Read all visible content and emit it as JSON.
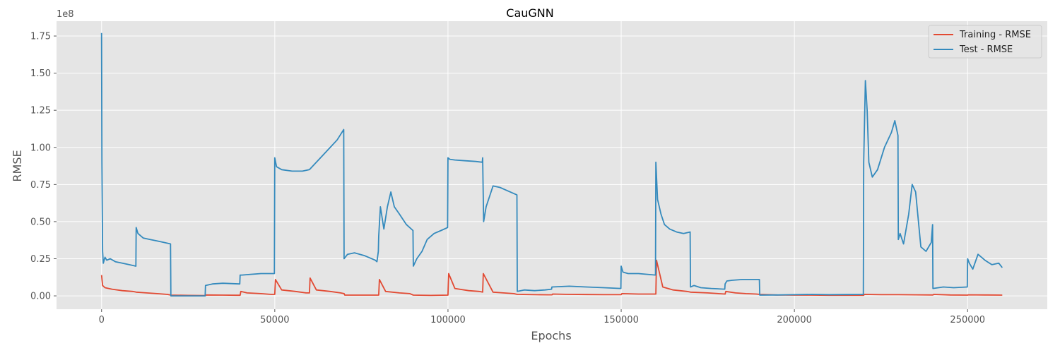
{
  "chart_data": {
    "type": "line",
    "title": "CauGNN",
    "xlabel": "Epochs",
    "ylabel": "RMSE",
    "scale_label": "1e8",
    "xlim": [
      -13000,
      273000
    ],
    "ylim": [
      -0.09,
      1.85
    ],
    "x_ticks": [
      0,
      50000,
      100000,
      150000,
      200000,
      250000
    ],
    "x_tick_labels": [
      "0",
      "50000",
      "100000",
      "150000",
      "200000",
      "250000"
    ],
    "y_ticks": [
      0.0,
      0.25,
      0.5,
      0.75,
      1.0,
      1.25,
      1.5,
      1.75
    ],
    "y_tick_labels": [
      "0.00",
      "0.25",
      "0.50",
      "0.75",
      "1.00",
      "1.25",
      "1.50",
      "1.75"
    ],
    "grid": true,
    "legend_position": "top-right",
    "series": [
      {
        "name": "Training - RMSE",
        "color": "#e24a33",
        "x": [
          0,
          300,
          1000,
          3000,
          6000,
          9000,
          10000,
          13000,
          16000,
          19000,
          20000,
          25000,
          30000,
          30200,
          35000,
          39000,
          40000,
          40200,
          42000,
          46000,
          49000,
          50000,
          50200,
          52000,
          56000,
          59000,
          60000,
          60200,
          62000,
          66000,
          69000,
          70000,
          70200,
          75000,
          80000,
          80200,
          82000,
          86000,
          89000,
          90000,
          95000,
          100000,
          100200,
          102000,
          106000,
          109000,
          110000,
          110200,
          113000,
          116000,
          119000,
          120000,
          125000,
          129000,
          130000,
          130200,
          135000,
          140000,
          145000,
          150000,
          150200,
          155000,
          160000,
          160200,
          162000,
          165000,
          169000,
          170000,
          175000,
          180000,
          180200,
          183000,
          186000,
          189000,
          190000,
          195000,
          200000,
          205000,
          210000,
          215000,
          220000,
          220200,
          225000,
          229000,
          230000,
          235000,
          240000,
          240200,
          245000,
          250000,
          250200,
          255000,
          260000
        ],
        "values": [
          0.14,
          0.07,
          0.055,
          0.045,
          0.035,
          0.03,
          0.025,
          0.02,
          0.015,
          0.01,
          0.005,
          0.003,
          0.002,
          0.006,
          0.005,
          0.004,
          0.004,
          0.03,
          0.02,
          0.015,
          0.01,
          0.01,
          0.11,
          0.04,
          0.03,
          0.02,
          0.02,
          0.12,
          0.04,
          0.03,
          0.02,
          0.015,
          0.005,
          0.005,
          0.005,
          0.11,
          0.03,
          0.02,
          0.015,
          0.005,
          0.003,
          0.005,
          0.15,
          0.05,
          0.035,
          0.03,
          0.025,
          0.15,
          0.025,
          0.02,
          0.015,
          0.01,
          0.008,
          0.007,
          0.007,
          0.012,
          0.01,
          0.009,
          0.008,
          0.008,
          0.015,
          0.012,
          0.012,
          0.24,
          0.06,
          0.04,
          0.03,
          0.025,
          0.02,
          0.012,
          0.03,
          0.02,
          0.015,
          0.012,
          0.01,
          0.006,
          0.005,
          0.005,
          0.004,
          0.004,
          0.004,
          0.01,
          0.008,
          0.008,
          0.008,
          0.007,
          0.006,
          0.01,
          0.006,
          0.005,
          0.007,
          0.006,
          0.005
        ]
      },
      {
        "name": "Test - RMSE",
        "color": "#348abd",
        "x": [
          0,
          100,
          300,
          500,
          1000,
          1500,
          2500,
          4000,
          6000,
          8000,
          9900,
          10000,
          10500,
          12000,
          14000,
          16000,
          18000,
          19900,
          20000,
          25000,
          29900,
          30000,
          32000,
          35000,
          39900,
          40000,
          40500,
          43000,
          46000,
          49900,
          50000,
          50500,
          52000,
          55000,
          58000,
          60000,
          62000,
          64000,
          66000,
          68000,
          69900,
          70000,
          71000,
          73000,
          76000,
          79000,
          79500,
          79900,
          80000,
          80500,
          81500,
          82500,
          83500,
          84500,
          86000,
          88000,
          89900,
          90000,
          91000,
          92500,
          94000,
          96000,
          98000,
          99900,
          100000,
          100500,
          102000,
          105000,
          108000,
          109900,
          110000,
          110300,
          111000,
          113000,
          115000,
          117000,
          119900,
          120000,
          122000,
          125000,
          128000,
          129900,
          130000,
          135000,
          140000,
          145000,
          149900,
          150000,
          150500,
          152000,
          155000,
          159900,
          160000,
          160500,
          161500,
          162500,
          164000,
          166000,
          168000,
          169900,
          170000,
          171000,
          173000,
          176000,
          179900,
          180000,
          180500,
          182000,
          185000,
          189900,
          190000,
          195000,
          200000,
          205000,
          210000,
          215000,
          219900,
          220000,
          220500,
          221000,
          221500,
          222500,
          224000,
          226000,
          228000,
          229000,
          229900,
          230000,
          230500,
          231500,
          233000,
          234000,
          235000,
          236500,
          238000,
          239500,
          239900,
          240000,
          243000,
          246000,
          249900,
          250000,
          250500,
          251500,
          253000,
          255000,
          257000,
          259000,
          260000
        ],
        "values": [
          1.77,
          0.9,
          0.3,
          0.22,
          0.26,
          0.24,
          0.25,
          0.23,
          0.22,
          0.21,
          0.2,
          0.46,
          0.42,
          0.39,
          0.38,
          0.37,
          0.36,
          0.35,
          0.0,
          0.0,
          0.0,
          0.07,
          0.08,
          0.085,
          0.08,
          0.14,
          0.14,
          0.145,
          0.15,
          0.15,
          0.93,
          0.87,
          0.85,
          0.84,
          0.84,
          0.85,
          0.9,
          0.95,
          1.0,
          1.05,
          1.12,
          0.25,
          0.28,
          0.29,
          0.27,
          0.24,
          0.23,
          0.3,
          0.4,
          0.6,
          0.45,
          0.6,
          0.7,
          0.6,
          0.55,
          0.48,
          0.44,
          0.2,
          0.25,
          0.3,
          0.38,
          0.42,
          0.44,
          0.46,
          0.93,
          0.92,
          0.915,
          0.91,
          0.905,
          0.9,
          0.93,
          0.5,
          0.6,
          0.74,
          0.73,
          0.71,
          0.68,
          0.03,
          0.04,
          0.035,
          0.04,
          0.045,
          0.06,
          0.065,
          0.06,
          0.055,
          0.05,
          0.2,
          0.16,
          0.15,
          0.15,
          0.14,
          0.9,
          0.65,
          0.55,
          0.48,
          0.45,
          0.43,
          0.42,
          0.43,
          0.06,
          0.07,
          0.055,
          0.05,
          0.045,
          0.08,
          0.1,
          0.105,
          0.11,
          0.11,
          0.005,
          0.006,
          0.008,
          0.01,
          0.008,
          0.009,
          0.01,
          0.9,
          1.45,
          1.25,
          0.9,
          0.8,
          0.85,
          1.0,
          1.1,
          1.18,
          1.08,
          0.38,
          0.42,
          0.35,
          0.55,
          0.75,
          0.7,
          0.33,
          0.3,
          0.36,
          0.48,
          0.05,
          0.06,
          0.055,
          0.06,
          0.25,
          0.22,
          0.18,
          0.28,
          0.24,
          0.21,
          0.22,
          0.19
        ]
      }
    ]
  }
}
